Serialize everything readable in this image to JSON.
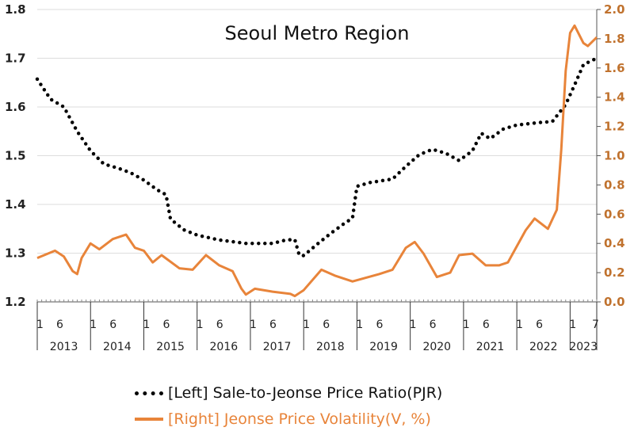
{
  "chart_data": {
    "type": "line",
    "title": "Seoul Metro Region",
    "xlabel": "",
    "x_ticks_months": [
      "1",
      "6"
    ],
    "x_last_tick": "7",
    "years": [
      "2013",
      "2014",
      "2015",
      "2016",
      "2017",
      "2018",
      "2019",
      "2020",
      "2021",
      "2022",
      "2023"
    ],
    "x_range": [
      "2013-01",
      "2023-07"
    ],
    "y_left": {
      "lim": [
        1.2,
        1.8
      ],
      "ticks": [
        "1.2",
        "1.3",
        "1.4",
        "1.5",
        "1.6",
        "1.7",
        "1.8"
      ]
    },
    "y_right": {
      "lim": [
        0,
        2.0
      ],
      "ticks": [
        "0.0",
        "0.2",
        "0.4",
        "0.6",
        "0.8",
        "1.0",
        "1.2",
        "1.4",
        "1.6",
        "1.8",
        "2.0"
      ]
    },
    "grid": true,
    "legend_position": "bottom",
    "series": [
      {
        "name": "[Left] Sale-to-Jeonse Price Ratio(PJR)",
        "axis": "left",
        "style": "dotted",
        "color": "#000000",
        "points": [
          [
            "2013-01",
            1.657
          ],
          [
            "2013-04",
            1.616
          ],
          [
            "2013-07",
            1.6
          ],
          [
            "2013-10",
            1.55
          ],
          [
            "2014-01",
            1.51
          ],
          [
            "2014-04",
            1.483
          ],
          [
            "2014-07",
            1.475
          ],
          [
            "2014-10",
            1.465
          ],
          [
            "2015-01",
            1.45
          ],
          [
            "2015-04",
            1.43
          ],
          [
            "2015-06",
            1.42
          ],
          [
            "2015-07",
            1.37
          ],
          [
            "2015-10",
            1.348
          ],
          [
            "2016-01",
            1.337
          ],
          [
            "2016-06",
            1.327
          ],
          [
            "2016-12",
            1.32
          ],
          [
            "2017-06",
            1.32
          ],
          [
            "2017-09",
            1.327
          ],
          [
            "2017-11",
            1.328
          ],
          [
            "2017-12",
            1.296
          ],
          [
            "2018-01",
            1.295
          ],
          [
            "2018-04",
            1.318
          ],
          [
            "2018-07",
            1.34
          ],
          [
            "2018-10",
            1.36
          ],
          [
            "2018-12",
            1.372
          ],
          [
            "2019-01",
            1.437
          ],
          [
            "2019-04",
            1.445
          ],
          [
            "2019-09",
            1.452
          ],
          [
            "2019-12",
            1.478
          ],
          [
            "2020-03",
            1.502
          ],
          [
            "2020-06",
            1.513
          ],
          [
            "2020-09",
            1.505
          ],
          [
            "2020-12",
            1.49
          ],
          [
            "2021-03",
            1.51
          ],
          [
            "2021-05",
            1.546
          ],
          [
            "2021-07",
            1.535
          ],
          [
            "2021-10",
            1.555
          ],
          [
            "2022-01",
            1.563
          ],
          [
            "2022-06",
            1.568
          ],
          [
            "2022-09",
            1.57
          ],
          [
            "2022-12",
            1.605
          ],
          [
            "2023-02",
            1.645
          ],
          [
            "2023-04",
            1.687
          ],
          [
            "2023-07",
            1.7
          ]
        ]
      },
      {
        "name": "[Right] Jeonse Price Volatility(V, %)",
        "axis": "right",
        "style": "solid",
        "color": "#e8843a",
        "points": [
          [
            "2013-01",
            0.3
          ],
          [
            "2013-05",
            0.35
          ],
          [
            "2013-07",
            0.31
          ],
          [
            "2013-09",
            0.21
          ],
          [
            "2013-10",
            0.19
          ],
          [
            "2013-11",
            0.3
          ],
          [
            "2014-01",
            0.4
          ],
          [
            "2014-03",
            0.36
          ],
          [
            "2014-06",
            0.43
          ],
          [
            "2014-09",
            0.46
          ],
          [
            "2014-11",
            0.37
          ],
          [
            "2015-01",
            0.35
          ],
          [
            "2015-03",
            0.27
          ],
          [
            "2015-05",
            0.32
          ],
          [
            "2015-09",
            0.23
          ],
          [
            "2015-12",
            0.22
          ],
          [
            "2016-03",
            0.32
          ],
          [
            "2016-06",
            0.25
          ],
          [
            "2016-09",
            0.21
          ],
          [
            "2016-11",
            0.09
          ],
          [
            "2016-12",
            0.05
          ],
          [
            "2017-02",
            0.09
          ],
          [
            "2017-06",
            0.07
          ],
          [
            "2017-10",
            0.055
          ],
          [
            "2017-11",
            0.04
          ],
          [
            "2018-01",
            0.08
          ],
          [
            "2018-05",
            0.22
          ],
          [
            "2018-08",
            0.18
          ],
          [
            "2018-12",
            0.14
          ],
          [
            "2019-06",
            0.19
          ],
          [
            "2019-09",
            0.22
          ],
          [
            "2019-12",
            0.37
          ],
          [
            "2020-02",
            0.41
          ],
          [
            "2020-04",
            0.33
          ],
          [
            "2020-07",
            0.17
          ],
          [
            "2020-10",
            0.2
          ],
          [
            "2020-12",
            0.32
          ],
          [
            "2021-03",
            0.33
          ],
          [
            "2021-06",
            0.25
          ],
          [
            "2021-09",
            0.25
          ],
          [
            "2021-11",
            0.27
          ],
          [
            "2022-01",
            0.38
          ],
          [
            "2022-03",
            0.49
          ],
          [
            "2022-05",
            0.57
          ],
          [
            "2022-08",
            0.5
          ],
          [
            "2022-10",
            0.63
          ],
          [
            "2022-11",
            1.04
          ],
          [
            "2022-12",
            1.58
          ],
          [
            "2023-01",
            1.84
          ],
          [
            "2023-02",
            1.89
          ],
          [
            "2023-04",
            1.77
          ],
          [
            "2023-05",
            1.75
          ],
          [
            "2023-07",
            1.81
          ]
        ]
      }
    ]
  }
}
